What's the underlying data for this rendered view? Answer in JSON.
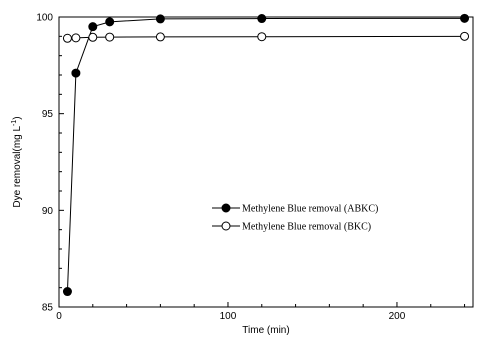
{
  "chart_data": {
    "type": "line",
    "xlabel": "Time (min)",
    "ylabel": "Dye removal(mg L",
    "ylabel_sup": "-1",
    "ylabel_close": ")",
    "xlim": [
      0,
      245
    ],
    "ylim": [
      85,
      100
    ],
    "xticks": [
      0,
      100,
      200
    ],
    "yticks": [
      85,
      90,
      95,
      100
    ],
    "x_minor_step": 20,
    "y_minor_step": 1,
    "grid": false,
    "legend_position": "center-right",
    "series": [
      {
        "name": "Methylene Blue removal (ABKC)",
        "marker": "filled-circle",
        "color": "#000000",
        "x": [
          5,
          10,
          20,
          30,
          60,
          120,
          240
        ],
        "y": [
          85.8,
          97.1,
          99.5,
          99.75,
          99.9,
          99.92,
          99.93
        ]
      },
      {
        "name": "Methylene Blue removal (BKC)",
        "marker": "open-circle",
        "color": "#000000",
        "x": [
          5,
          10,
          20,
          30,
          60,
          120,
          240
        ],
        "y": [
          98.9,
          98.92,
          98.95,
          98.96,
          98.97,
          98.98,
          99.0
        ]
      }
    ]
  }
}
